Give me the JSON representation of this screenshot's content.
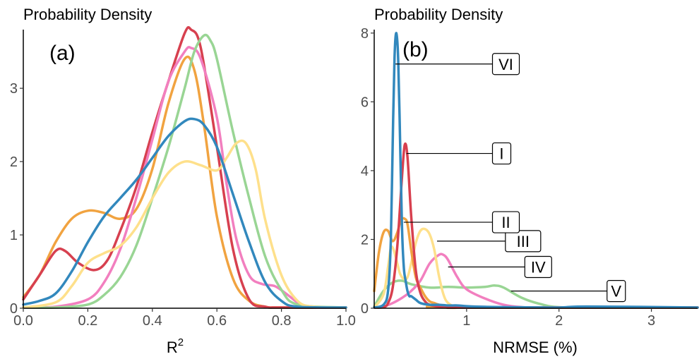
{
  "chart_data": [
    {
      "type": "line",
      "title": "Probability Density",
      "panel_label": "(a)",
      "xlabel": "R",
      "xlabel_sup": "2",
      "xlim": [
        0,
        1
      ],
      "ylim": [
        0,
        3.8
      ],
      "xticks": [
        0.0,
        0.2,
        0.4,
        0.6,
        0.8,
        1.0
      ],
      "xtick_labels": [
        "0.0",
        "0.2",
        "0.4",
        "0.6",
        "0.8",
        "1.0"
      ],
      "yticks": [
        0,
        1,
        2,
        3
      ],
      "ytick_labels": [
        "0",
        "1",
        "2",
        "3"
      ],
      "grid": false,
      "series": [
        {
          "color": "#f1a340",
          "x": [
            0,
            0.05,
            0.1,
            0.15,
            0.2,
            0.25,
            0.3,
            0.35,
            0.4,
            0.45,
            0.5,
            0.53,
            0.56,
            0.6,
            0.65,
            0.7,
            0.75,
            0.8,
            1.0
          ],
          "values": [
            0.15,
            0.45,
            0.9,
            1.22,
            1.33,
            1.3,
            1.22,
            1.35,
            1.9,
            2.8,
            3.4,
            3.25,
            2.5,
            1.25,
            0.4,
            0.1,
            0.02,
            0.0,
            0.0
          ]
        },
        {
          "color": "#d7404f",
          "x": [
            0,
            0.05,
            0.1,
            0.13,
            0.17,
            0.22,
            0.26,
            0.3,
            0.35,
            0.4,
            0.45,
            0.5,
            0.52,
            0.55,
            0.6,
            0.65,
            0.7,
            0.75,
            0.8,
            1.0
          ],
          "values": [
            0.12,
            0.45,
            0.78,
            0.78,
            0.62,
            0.52,
            0.65,
            1.05,
            1.65,
            2.4,
            3.1,
            3.75,
            3.8,
            3.55,
            2.2,
            0.8,
            0.12,
            0.02,
            0.0,
            0.0
          ]
        },
        {
          "color": "#f27fbf",
          "x": [
            0,
            0.1,
            0.2,
            0.25,
            0.3,
            0.35,
            0.4,
            0.45,
            0.5,
            0.52,
            0.55,
            0.6,
            0.63,
            0.66,
            0.7,
            0.74,
            0.78,
            0.82,
            0.86,
            0.9,
            1.0
          ],
          "values": [
            0.0,
            0.02,
            0.12,
            0.35,
            0.8,
            1.5,
            2.3,
            3.1,
            3.5,
            3.55,
            3.4,
            2.6,
            1.7,
            0.95,
            0.45,
            0.33,
            0.3,
            0.18,
            0.05,
            0.0,
            0.0
          ]
        },
        {
          "color": "#99d594",
          "x": [
            0,
            0.1,
            0.2,
            0.25,
            0.3,
            0.35,
            0.4,
            0.45,
            0.5,
            0.53,
            0.56,
            0.58,
            0.6,
            0.65,
            0.7,
            0.75,
            0.8,
            0.85,
            1.0
          ],
          "values": [
            0.0,
            0.0,
            0.05,
            0.18,
            0.42,
            0.85,
            1.5,
            2.2,
            3.0,
            3.5,
            3.72,
            3.65,
            3.4,
            2.4,
            1.5,
            0.7,
            0.25,
            0.05,
            0.0
          ]
        },
        {
          "color": "#fee08b",
          "x": [
            0,
            0.1,
            0.15,
            0.2,
            0.25,
            0.3,
            0.35,
            0.4,
            0.45,
            0.5,
            0.55,
            0.6,
            0.63,
            0.66,
            0.69,
            0.72,
            0.75,
            0.8,
            0.85,
            0.9,
            1.0
          ],
          "values": [
            0.0,
            0.08,
            0.3,
            0.62,
            0.75,
            0.85,
            1.1,
            1.5,
            1.85,
            2.0,
            1.95,
            1.88,
            2.05,
            2.25,
            2.25,
            1.9,
            1.2,
            0.45,
            0.1,
            0.02,
            0.0
          ]
        },
        {
          "color": "#3288bd",
          "x": [
            0,
            0.05,
            0.1,
            0.15,
            0.2,
            0.25,
            0.3,
            0.35,
            0.4,
            0.45,
            0.5,
            0.53,
            0.56,
            0.6,
            0.65,
            0.7,
            0.75,
            0.8,
            0.85,
            1.0
          ],
          "values": [
            0.05,
            0.1,
            0.2,
            0.5,
            0.9,
            1.25,
            1.5,
            1.75,
            2.05,
            2.35,
            2.55,
            2.58,
            2.5,
            2.2,
            1.55,
            0.9,
            0.35,
            0.1,
            0.02,
            0.0
          ]
        }
      ]
    },
    {
      "type": "line",
      "title": "Probability Density",
      "panel_label": "(b)",
      "xlabel": "NRMSE (%)",
      "xlim": [
        0,
        3.5
      ],
      "ylim": [
        0,
        8.1
      ],
      "xticks": [
        1,
        2,
        3
      ],
      "xtick_labels": [
        "1",
        "2",
        "3"
      ],
      "yticks": [
        0,
        2,
        4,
        6,
        8
      ],
      "ytick_labels": [
        "0",
        "2",
        "4",
        "6",
        "8"
      ],
      "grid": false,
      "series": [
        {
          "label": "V",
          "color": "#99d594",
          "label_at": [
            1.48,
            0.5
          ],
          "box_at": [
            2.52,
            0.5
          ],
          "x": [
            0,
            0.1,
            0.2,
            0.3,
            0.4,
            0.6,
            0.8,
            1.0,
            1.2,
            1.3,
            1.4,
            1.6,
            1.8,
            2.0,
            2.5,
            3.5
          ],
          "values": [
            0.05,
            0.5,
            0.75,
            0.8,
            0.7,
            0.6,
            0.62,
            0.6,
            0.62,
            0.66,
            0.6,
            0.3,
            0.12,
            0.03,
            0.0,
            0.0
          ]
        },
        {
          "label": "IV",
          "color": "#f27fbf",
          "label_at": [
            0.8,
            1.2
          ],
          "box_at": [
            1.63,
            1.2
          ],
          "x": [
            0,
            0.1,
            0.2,
            0.3,
            0.4,
            0.5,
            0.6,
            0.7,
            0.75,
            0.8,
            0.9,
            1.0,
            1.2,
            1.4,
            1.6,
            1.8,
            2.0,
            3.5
          ],
          "values": [
            0.0,
            0.05,
            0.15,
            0.3,
            0.5,
            0.8,
            1.3,
            1.55,
            1.55,
            1.4,
            0.9,
            0.55,
            0.28,
            0.1,
            0.03,
            0.0,
            0.0,
            0.0
          ]
        },
        {
          "label": "III",
          "color": "#fee08b",
          "label_at": [
            0.68,
            1.95
          ],
          "box_at": [
            1.42,
            1.95
          ],
          "x": [
            0,
            0.1,
            0.15,
            0.18,
            0.21,
            0.25,
            0.28,
            0.32,
            0.36,
            0.4,
            0.45,
            0.5,
            0.55,
            0.6,
            0.65,
            0.7,
            0.75,
            0.8,
            0.9,
            1.0,
            3.5
          ],
          "values": [
            0.0,
            0.4,
            1.2,
            1.75,
            1.7,
            1.3,
            1.0,
            0.85,
            0.9,
            1.3,
            1.9,
            2.25,
            2.3,
            2.15,
            1.7,
            0.95,
            0.4,
            0.15,
            0.02,
            0.0,
            0.0
          ]
        },
        {
          "label": "II",
          "color": "#f1a340",
          "label_at": [
            0.32,
            2.5
          ],
          "box_at": [
            1.28,
            2.5
          ],
          "x": [
            0,
            0.05,
            0.1,
            0.15,
            0.2,
            0.25,
            0.28,
            0.3,
            0.33,
            0.36,
            0.4,
            0.45,
            0.5,
            0.55,
            0.6,
            0.65,
            0.7,
            0.8,
            3.5
          ],
          "values": [
            0.5,
            1.6,
            2.2,
            2.25,
            1.95,
            2.2,
            2.5,
            2.6,
            2.6,
            2.45,
            1.7,
            0.9,
            0.6,
            0.35,
            0.2,
            0.15,
            0.1,
            0.0,
            0.0
          ]
        },
        {
          "label": "I",
          "color": "#d7404f",
          "label_at": [
            0.35,
            4.5
          ],
          "box_at": [
            1.28,
            4.5
          ],
          "x": [
            0,
            0.1,
            0.15,
            0.2,
            0.25,
            0.3,
            0.33,
            0.36,
            0.4,
            0.45,
            0.5,
            0.55,
            0.6,
            0.7,
            0.8,
            0.9,
            1.0,
            3.5
          ],
          "values": [
            0.0,
            0.03,
            0.15,
            0.6,
            1.8,
            3.8,
            4.75,
            4.4,
            2.7,
            1.1,
            0.45,
            0.2,
            0.1,
            0.05,
            0.05,
            0.02,
            0.0,
            0.0
          ]
        },
        {
          "label": "VI",
          "color": "#3288bd",
          "label_at": [
            0.23,
            7.1
          ],
          "box_at": [
            1.28,
            7.1
          ],
          "x": [
            0,
            0.1,
            0.15,
            0.18,
            0.2,
            0.22,
            0.24,
            0.26,
            0.28,
            0.3,
            0.32,
            0.34,
            0.36,
            0.38,
            0.4,
            0.45,
            0.5,
            0.6,
            0.7,
            0.8,
            0.9,
            1.0,
            1.2,
            1.5,
            2.0,
            2.3,
            3.5
          ],
          "values": [
            0.02,
            0.1,
            0.5,
            2.0,
            4.8,
            7.3,
            8.0,
            7.2,
            4.9,
            2.4,
            1.2,
            0.8,
            0.5,
            0.35,
            0.35,
            0.25,
            0.15,
            0.1,
            0.1,
            0.08,
            0.08,
            0.06,
            0.04,
            0.03,
            0.02,
            0.05,
            0.02
          ]
        }
      ]
    }
  ]
}
